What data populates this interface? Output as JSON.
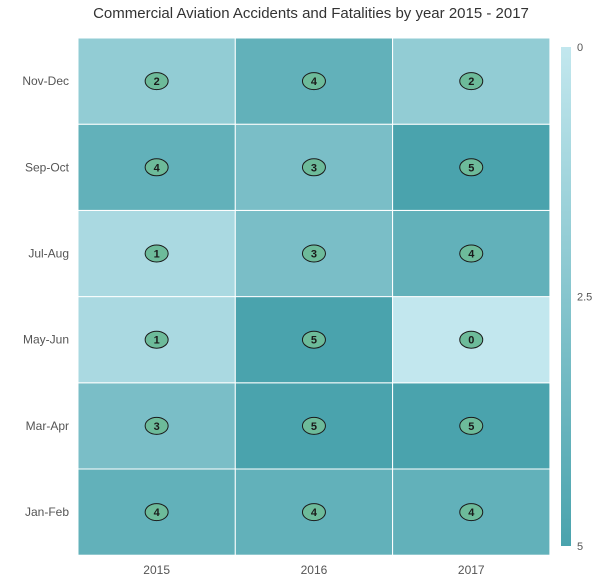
{
  "chart_data": {
    "type": "heatmap",
    "title": "Commercial Aviation Accidents and Fatalities by year 2015 - 2017",
    "x_categories": [
      "2015",
      "2016",
      "2017"
    ],
    "y_categories": [
      "Jan-Feb",
      "Mar-Apr",
      "May-Jun",
      "Jul-Aug",
      "Sep-Oct",
      "Nov-Dec"
    ],
    "values": [
      [
        4,
        3,
        1,
        1,
        4,
        2
      ],
      [
        4,
        5,
        5,
        3,
        3,
        4
      ],
      [
        4,
        5,
        0,
        4,
        5,
        2
      ]
    ],
    "legend": {
      "placement": "right",
      "min": 0,
      "max": 5,
      "ticks": [
        "0",
        "2.5",
        "5"
      ]
    },
    "colors": {
      "low": "#c2e7ee",
      "high": "#4aa3ad",
      "badge_fill": "#6dbb9a",
      "badge_stroke": "#1a1a1a"
    }
  }
}
